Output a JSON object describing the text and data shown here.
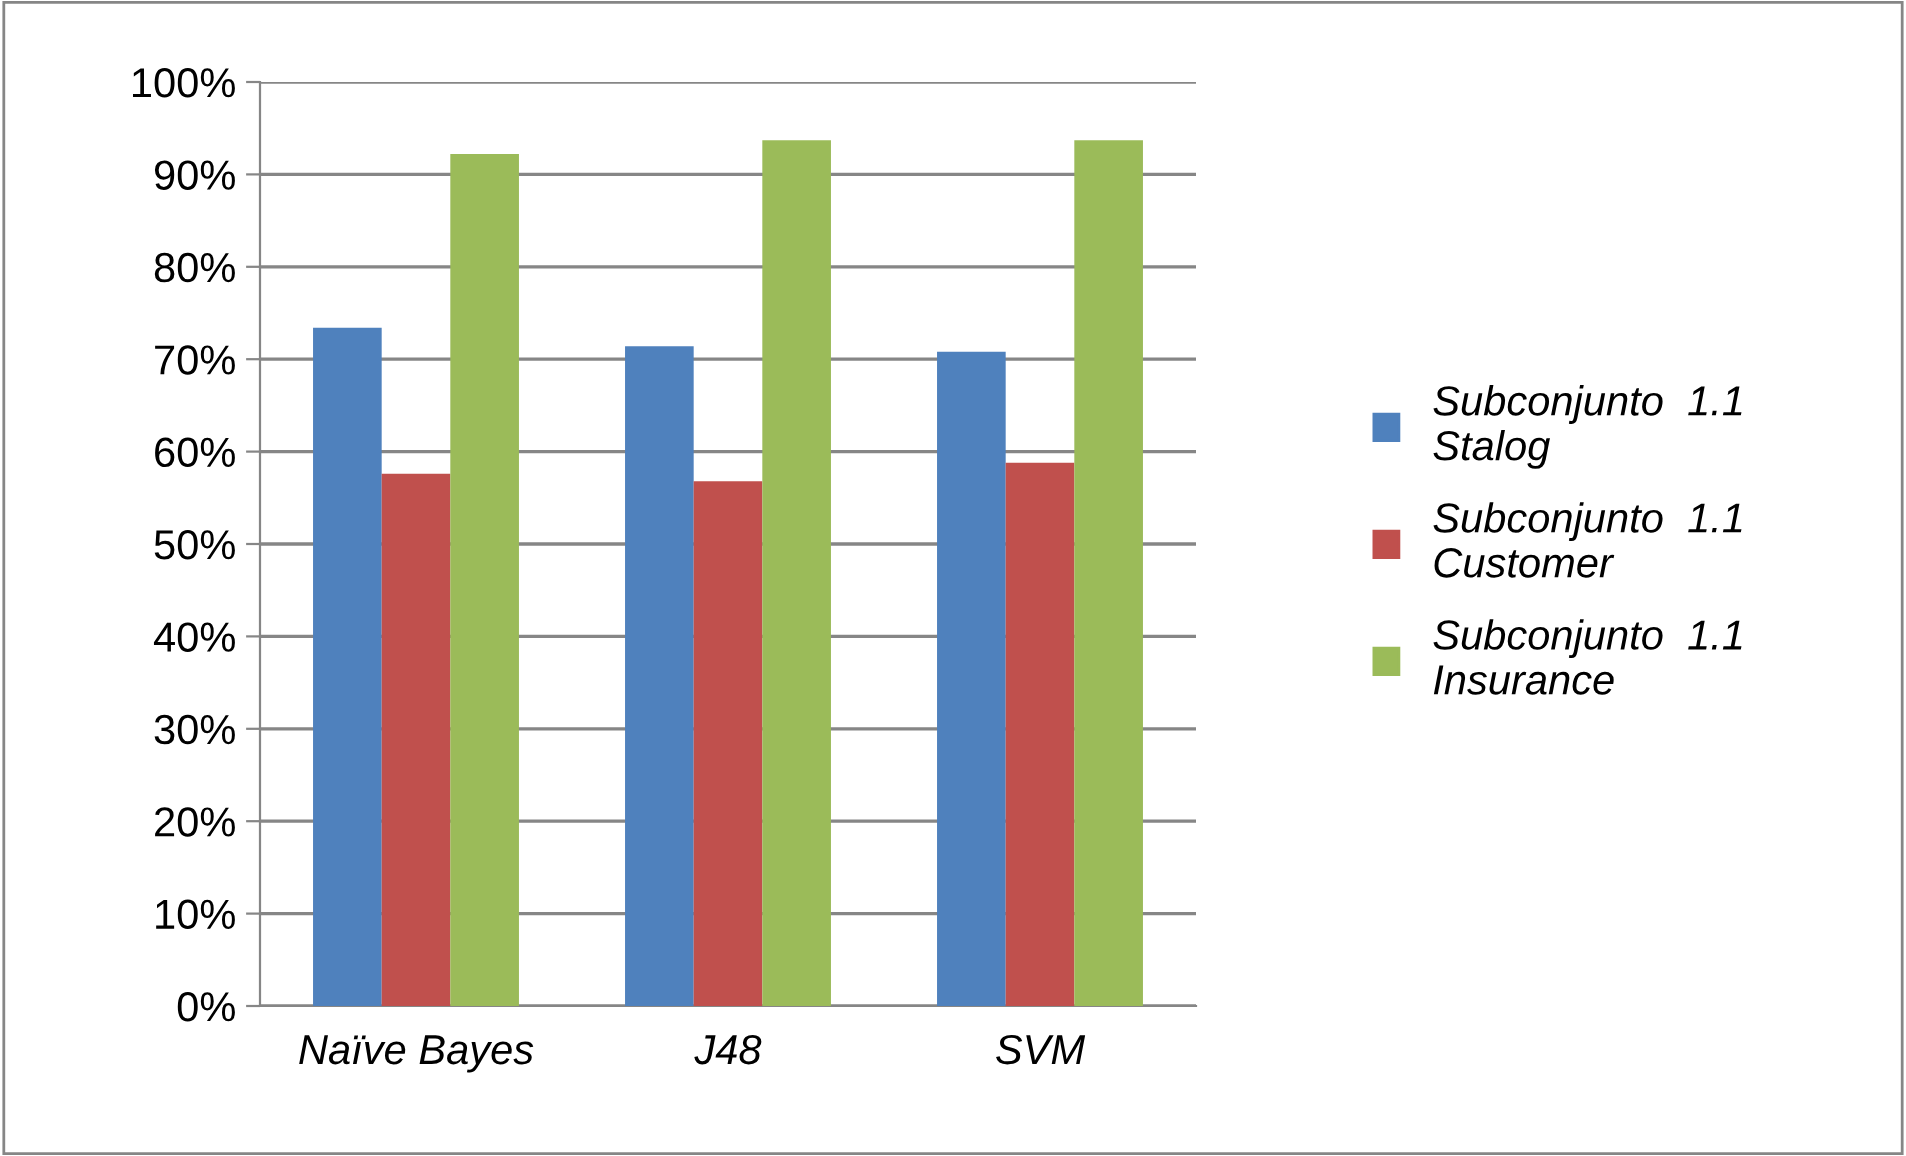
{
  "chart_data": {
    "type": "bar",
    "categories": [
      "Naïve Bayes",
      "J48",
      "SVM"
    ],
    "series": [
      {
        "name": "Subconjunto  1.1\nStalog",
        "color": "#4f81bd",
        "values": [
          73.4,
          71.4,
          70.8
        ]
      },
      {
        "name": "Subconjunto  1.1\nCustomer",
        "color": "#c0504d",
        "values": [
          57.6,
          56.8,
          58.8
        ]
      },
      {
        "name": "Subconjunto  1.1\nInsurance",
        "color": "#9bbb59",
        "values": [
          92.2,
          93.7,
          93.7
        ]
      }
    ],
    "ylim": [
      0,
      100
    ],
    "yticks": [
      {
        "value": 0,
        "label": "0%"
      },
      {
        "value": 10,
        "label": "10%"
      },
      {
        "value": 20,
        "label": "20%"
      },
      {
        "value": 30,
        "label": "30%"
      },
      {
        "value": 40,
        "label": "40%"
      },
      {
        "value": 50,
        "label": "50%"
      },
      {
        "value": 60,
        "label": "60%"
      },
      {
        "value": 70,
        "label": "70%"
      },
      {
        "value": 80,
        "label": "80%"
      },
      {
        "value": 90,
        "label": "90%"
      },
      {
        "value": 100,
        "label": "100%"
      }
    ],
    "grid": "y",
    "legend": "right"
  }
}
